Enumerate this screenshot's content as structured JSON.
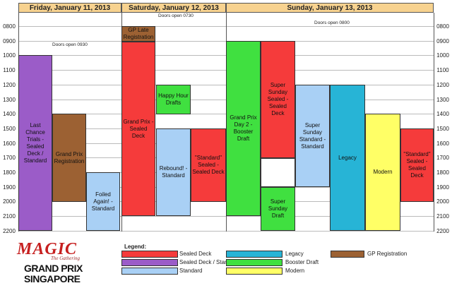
{
  "days": {
    "friday": "Friday, January 11, 2013",
    "saturday": "Saturday, January 12, 2013",
    "sunday": "Sunday, January 13, 2013"
  },
  "times": [
    "0800",
    "0900",
    "1000",
    "1100",
    "1200",
    "1300",
    "1400",
    "1500",
    "1600",
    "1700",
    "1800",
    "1900",
    "2000",
    "2100",
    "2200"
  ],
  "doors": {
    "friday": "Doors open 0930",
    "saturday": "Doors open 0730",
    "sunday": "Doors open 0800"
  },
  "events": {
    "last_chance": "Last Chance Trials - Sealed Deck / Standard",
    "gp_registration": "Grand Prix Registration",
    "foiled_again": "Foiled Again! - Standard",
    "gp_late": "GP Late Registration",
    "gp_sealed": "Grand Prix - Sealed Deck",
    "happy_hour": "Happy Hour Drafts",
    "rebound": "Rebound! - Standard",
    "standard_sealed_sat": "\"Standard\" Sealed - Sealed Deck",
    "gp_day2": "Grand Prix Day 2 - Booster Draft",
    "super_sunday_sealed": "Super Sunday Sealed - Sealed Deck",
    "super_sunday_draft": "Super Sunday Draft",
    "super_sunday_standard": "Super Sunday Standard - Standard",
    "legacy": "Legacy",
    "modern": "Modern",
    "standard_sealed_sun": "\"Standard\" Sealed - Sealed Deck"
  },
  "legend": {
    "title": "Legend:",
    "sealed_deck": "Sealed Deck",
    "sealed_standard": "Sealed Deck / Standard",
    "standard": "Standard",
    "legacy": "Legacy",
    "booster_draft": "Booster Draft",
    "modern": "Modern",
    "gp_registration": "GP Registration"
  },
  "logo": {
    "magic": "MAGIC",
    "subtitle": "The Gathering",
    "gp": "GRAND PRIX",
    "city": "SINGAPORE"
  },
  "colors": {
    "header": "#f7d28f",
    "sealed": "#f53b3b",
    "sealed_standard": "#9b5cc8",
    "standard": "#a9d0f5",
    "legacy": "#27b4d6",
    "booster": "#40e040",
    "modern": "#ffff66",
    "registration": "#9c6133"
  }
}
